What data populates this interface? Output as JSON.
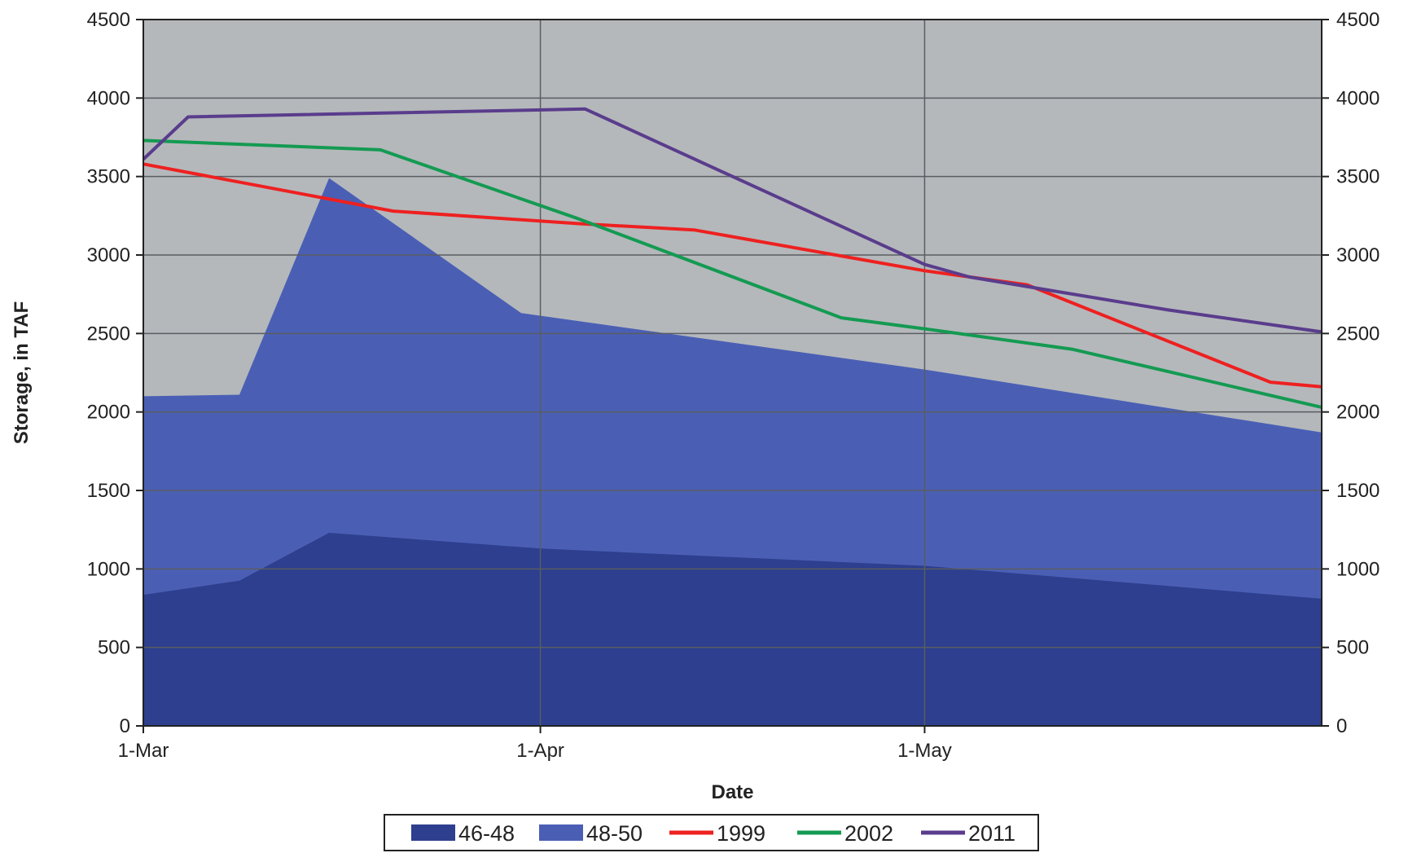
{
  "chart_data": {
    "type": "area",
    "xlabel": "Date",
    "ylabel": "Storage, in TAF",
    "x_ticks": [
      {
        "label": "1-Mar",
        "day": 0
      },
      {
        "label": "1-Apr",
        "day": 31
      },
      {
        "label": "1-May",
        "day": 61
      }
    ],
    "xlim": [
      0,
      92
    ],
    "ylim": [
      0,
      4500
    ],
    "y_ticks": [
      0,
      500,
      1000,
      1500,
      2000,
      2500,
      3000,
      3500,
      4000,
      4500
    ],
    "y_ticks_right": [
      0,
      500,
      1000,
      1500,
      2000,
      2500,
      3000,
      3500,
      4000,
      4500
    ],
    "grid": true,
    "plot_background": "#b4b8bb",
    "legend_position": "bottom",
    "series": [
      {
        "name": "46-48",
        "kind": "area",
        "color": "#2d3f8e",
        "points": [
          [
            0,
            835
          ],
          [
            7.5,
            925
          ],
          [
            14.5,
            1230
          ],
          [
            31,
            1130
          ],
          [
            61,
            1020
          ],
          [
            92,
            810
          ]
        ]
      },
      {
        "name": "48-50",
        "kind": "area",
        "color": "#4a5fb4",
        "points": [
          [
            0,
            2100
          ],
          [
            7.5,
            2110
          ],
          [
            14.5,
            3490
          ],
          [
            29.5,
            2630
          ],
          [
            61,
            2270
          ],
          [
            92,
            1870
          ]
        ]
      },
      {
        "name": "1999",
        "kind": "line",
        "color": "#ee2020",
        "points": [
          [
            0,
            3580
          ],
          [
            19.5,
            3280
          ],
          [
            34,
            3200
          ],
          [
            43,
            3160
          ],
          [
            61,
            2900
          ],
          [
            69,
            2810
          ],
          [
            88,
            2190
          ],
          [
            92,
            2160
          ]
        ]
      },
      {
        "name": "2002",
        "kind": "line",
        "color": "#149a52",
        "points": [
          [
            0,
            3730
          ],
          [
            18.5,
            3670
          ],
          [
            34,
            3230
          ],
          [
            54.5,
            2600
          ],
          [
            61,
            2530
          ],
          [
            72.5,
            2400
          ],
          [
            92,
            2030
          ]
        ]
      },
      {
        "name": "2011",
        "kind": "line",
        "color": "#5a3c8c",
        "points": [
          [
            0,
            3610
          ],
          [
            3.5,
            3880
          ],
          [
            34.5,
            3930
          ],
          [
            61,
            2940
          ],
          [
            64.5,
            2860
          ],
          [
            80,
            2650
          ],
          [
            92,
            2510
          ]
        ]
      }
    ]
  }
}
